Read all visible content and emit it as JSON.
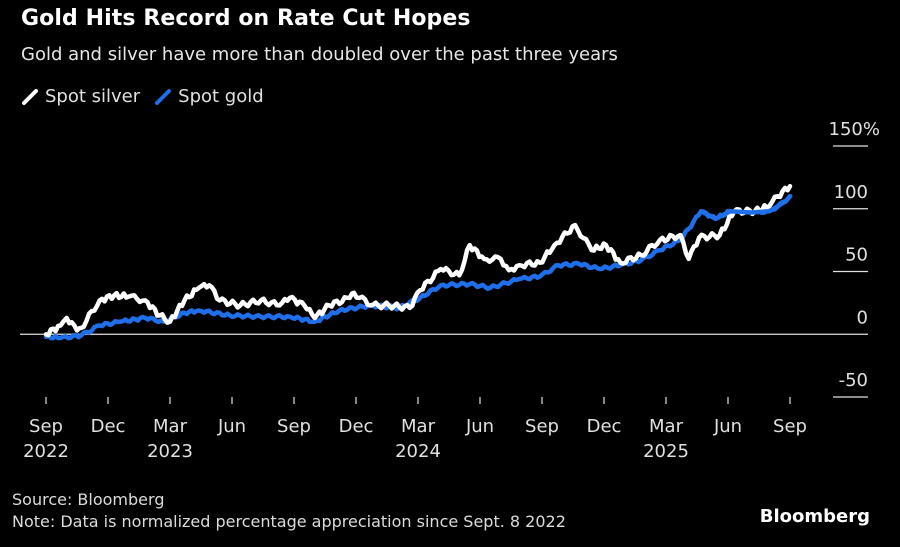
{
  "header": {
    "title": "Gold Hits Record on Rate Cut Hopes",
    "subtitle": "Gold and silver have more than doubled over the past three years"
  },
  "footer": {
    "source": "Source: Bloomberg",
    "note": "Note: Data is normalized percentage appreciation since Sept. 8 2022",
    "brand": "Bloomberg"
  },
  "colors": {
    "silver": "#ffffff",
    "gold": "#1f6fea",
    "background": "#000000",
    "axis": "#e0e0e0"
  },
  "chart_data": {
    "type": "line",
    "title": "Gold Hits Record on Rate Cut Hopes",
    "subtitle": "Gold and silver have more than doubled over the past three years",
    "xlabel": "",
    "ylabel": "",
    "ylim": [
      -50,
      150
    ],
    "y_ticks": [
      {
        "value": 150,
        "label": "150%"
      },
      {
        "value": 100,
        "label": "100"
      },
      {
        "value": 50,
        "label": "50"
      },
      {
        "value": 0,
        "label": "0"
      },
      {
        "value": -50,
        "label": "-50"
      }
    ],
    "x_range_months": [
      0,
      36
    ],
    "x_ticks": [
      {
        "month": 0,
        "label": "Sep",
        "year": "2022"
      },
      {
        "month": 3,
        "label": "Dec",
        "year": ""
      },
      {
        "month": 6,
        "label": "Mar",
        "year": "2023"
      },
      {
        "month": 9,
        "label": "Jun",
        "year": ""
      },
      {
        "month": 12,
        "label": "Sep",
        "year": ""
      },
      {
        "month": 15,
        "label": "Dec",
        "year": ""
      },
      {
        "month": 18,
        "label": "Mar",
        "year": "2024"
      },
      {
        "month": 21,
        "label": "Jun",
        "year": ""
      },
      {
        "month": 24,
        "label": "Sep",
        "year": ""
      },
      {
        "month": 27,
        "label": "Dec",
        "year": ""
      },
      {
        "month": 30,
        "label": "Mar",
        "year": "2025"
      },
      {
        "month": 33,
        "label": "Jun",
        "year": ""
      },
      {
        "month": 36,
        "label": "Sep",
        "year": ""
      }
    ],
    "legend": {
      "placement": "top-left",
      "entries": [
        "Spot silver",
        "Spot gold"
      ]
    },
    "grid": false,
    "series": [
      {
        "name": "Spot silver",
        "color": "#ffffff",
        "x_months": [
          0,
          0.7,
          1.0,
          1.5,
          1.7,
          2.6,
          3.3,
          4.0,
          4.8,
          5.5,
          6.0,
          6.7,
          7.4,
          7.9,
          8.4,
          9.4,
          10.4,
          11.3,
          11.8,
          12.5,
          13.0,
          13.7,
          14.7,
          14.9,
          15.7,
          16.6,
          17.6,
          18.1,
          19.1,
          20.0,
          20.5,
          21.2,
          22.0,
          22.4,
          22.9,
          23.9,
          24.6,
          25.6,
          26.4,
          27.1,
          27.8,
          28.8,
          29.7,
          30.7,
          31.1,
          31.6,
          32.6,
          33.3,
          34.3,
          35.0,
          35.4,
          36.0
        ],
        "values": [
          0,
          7,
          13,
          3,
          5,
          27,
          31,
          30,
          27,
          15,
          10,
          27,
          37,
          39,
          27,
          23,
          27,
          23,
          29,
          23,
          13,
          23,
          29,
          33,
          23,
          23,
          21,
          35,
          52,
          47,
          71,
          60,
          60,
          51,
          55,
          57,
          71,
          87,
          67,
          71,
          57,
          63,
          75,
          79,
          60,
          77,
          79,
          98,
          98,
          102,
          110,
          118
        ]
      },
      {
        "name": "Spot gold",
        "color": "#1f6fea",
        "x_months": [
          0,
          0.7,
          1.7,
          2.6,
          3.6,
          4.8,
          5.7,
          6.7,
          7.4,
          8.9,
          10.4,
          11.8,
          13.0,
          14.2,
          15.7,
          17.1,
          18.1,
          19.1,
          20.5,
          21.5,
          22.9,
          23.9,
          24.8,
          25.8,
          26.8,
          27.8,
          28.8,
          29.7,
          30.7,
          31.7,
          32.4,
          33.1,
          34.1,
          35.0,
          35.8,
          36.0
        ],
        "values": [
          -2,
          -3,
          -1,
          7,
          10,
          13,
          10,
          17,
          19,
          15,
          14,
          14,
          10,
          19,
          23,
          21,
          29,
          39,
          40,
          37,
          44,
          46,
          55,
          56,
          52,
          55,
          59,
          67,
          75,
          98,
          92,
          98,
          97,
          98,
          106,
          110
        ]
      }
    ]
  }
}
